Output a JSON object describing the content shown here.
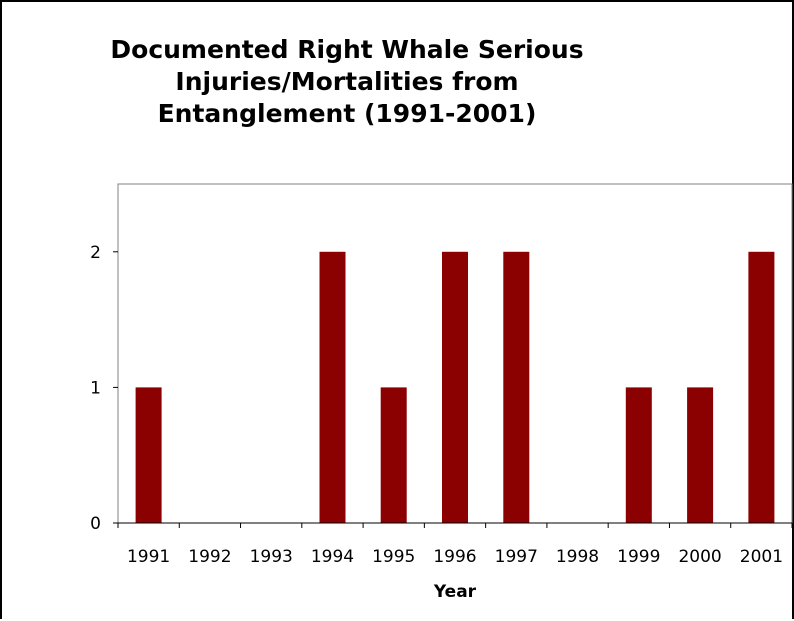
{
  "chart_data": {
    "type": "bar",
    "title_lines": [
      "Documented Right Whale Serious",
      "Injuries/Mortalities from",
      "Entanglement (1991-2001)"
    ],
    "xlabel": "Year",
    "ylabel": "",
    "categories": [
      "1991",
      "1992",
      "1993",
      "1994",
      "1995",
      "1996",
      "1997",
      "1998",
      "1999",
      "2000",
      "2001"
    ],
    "values": [
      1,
      0,
      0,
      2,
      1,
      2,
      2,
      0,
      1,
      1,
      2
    ],
    "ylim": [
      0,
      2.5
    ],
    "yticks": [
      0,
      1,
      2
    ],
    "grid": false,
    "legend": "none",
    "bar_color": "#8B0000",
    "axis_color": "#808080"
  }
}
